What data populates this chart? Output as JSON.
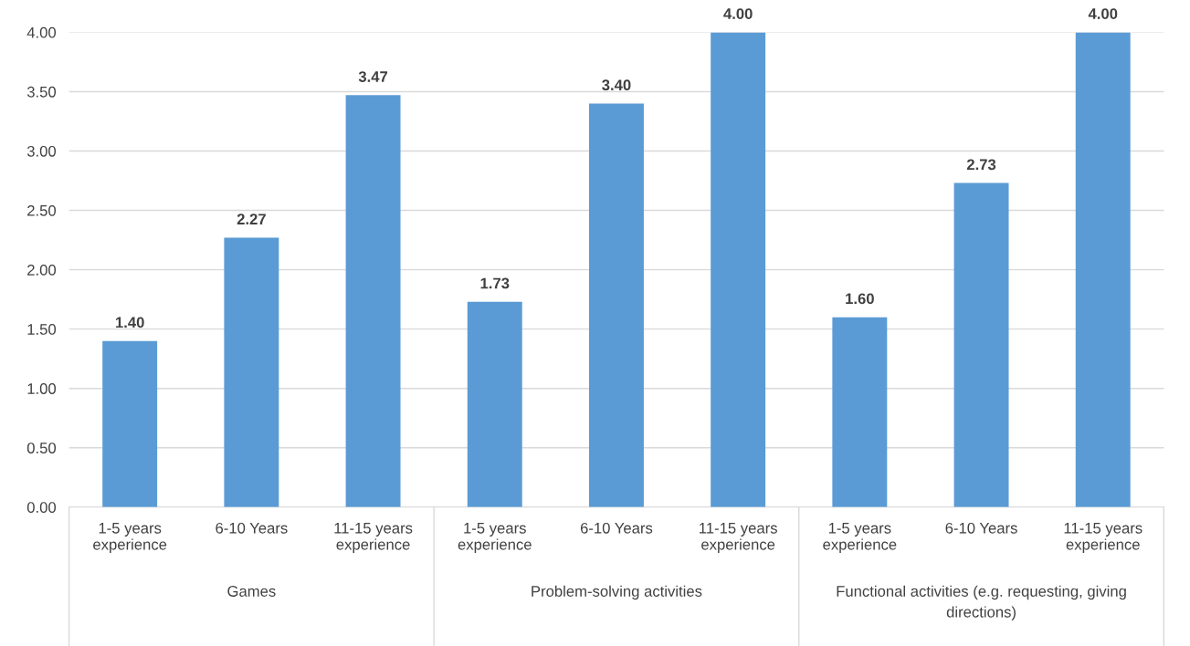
{
  "chart_data": {
    "type": "bar",
    "categories": [
      "1-5 years\nexperience",
      "6-10 Years",
      "11-15 years\nexperience",
      "1-5 years\nexperience",
      "6-10 Years",
      "11-15 years\nexperience",
      "1-5 years\nexperience",
      "6-10 Years",
      "11-15 years\nexperience"
    ],
    "values": [
      1.4,
      2.27,
      3.47,
      1.73,
      3.4,
      4.0,
      1.6,
      2.73,
      4.0
    ],
    "value_labels": [
      "1.40",
      "2.27",
      "3.47",
      "1.73",
      "3.40",
      "4.00",
      "1.60",
      "2.73",
      "4.00"
    ],
    "color": "#5b9bd5",
    "annotations": [
      "Games",
      "Problem-solving activities",
      "Functional activities (e.g. requesting, giving\ndirections)"
    ],
    "ylim": [
      0,
      4
    ],
    "yticks": [
      {
        "value": 0,
        "label": "0.00"
      },
      {
        "value": 0.5,
        "label": "0.50"
      },
      {
        "value": 1,
        "label": "1.00"
      },
      {
        "value": 1.5,
        "label": "1.50"
      },
      {
        "value": 2,
        "label": "2.00"
      },
      {
        "value": 2.5,
        "label": "2.50"
      },
      {
        "value": 3,
        "label": "3.00"
      },
      {
        "value": 3.5,
        "label": "3.50"
      },
      {
        "value": 4,
        "label": "4.00"
      }
    ],
    "grid": "y"
  }
}
